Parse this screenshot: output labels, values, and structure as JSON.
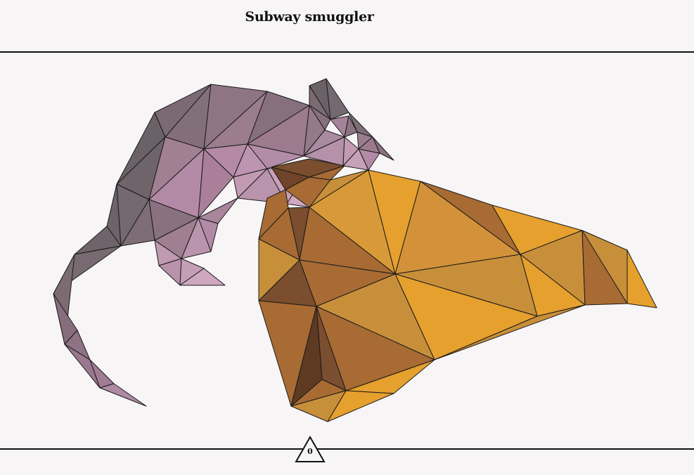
{
  "puzzle": {
    "title": "Subway smuggler",
    "counter": "0"
  },
  "colors": {
    "background": "#f7f5f5",
    "rule": "#111111",
    "rat_palette": [
      "#6f6469",
      "#7c6b73",
      "#8a7180",
      "#9b7d8d",
      "#a97f99",
      "#b48aa6",
      "#c29bb3"
    ],
    "cheese_palette": [
      "#7a4e2e",
      "#a86b34",
      "#c88f3b",
      "#e5a02d",
      "#d89a38"
    ]
  }
}
